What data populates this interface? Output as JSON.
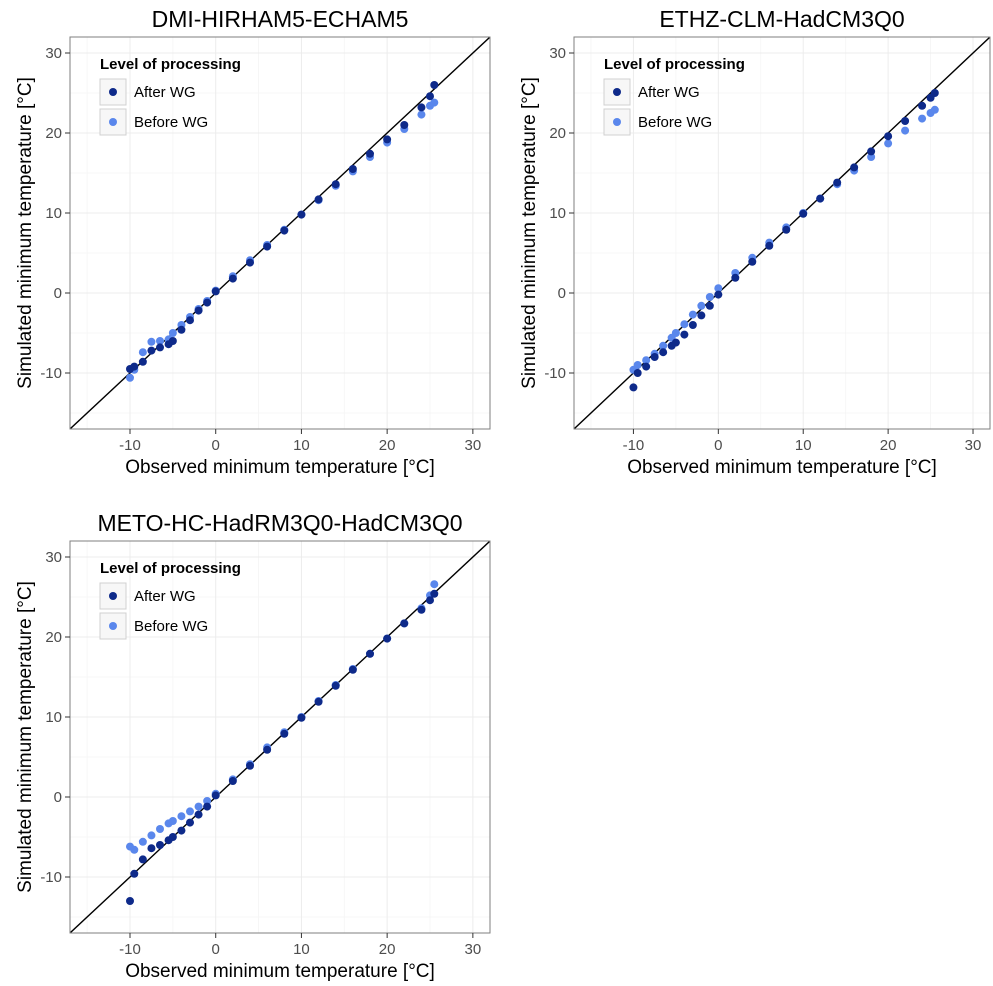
{
  "colors": {
    "after": "#0e2a8a",
    "before": "#5a87ec",
    "reference_line": "#000000",
    "grid": "#ececec",
    "frame": "#7f7f7f"
  },
  "chart_data": [
    {
      "type": "scatter",
      "title": "DMI-HIRHAM5-ECHAM5",
      "xlabel": "Observed minimum temperature [°C]",
      "ylabel": "Simulated minimum temperature [°C]",
      "xlim": [
        -17,
        32
      ],
      "ylim": [
        -17,
        32
      ],
      "xticks": [
        -10,
        0,
        10,
        20,
        30
      ],
      "yticks": [
        -10,
        0,
        10,
        20,
        30
      ],
      "grid": true,
      "reference_line": "y = x",
      "legend": {
        "title": "Level of processing",
        "position": "top-left"
      },
      "series": [
        {
          "name": "After WG",
          "color": "#0e2a8a",
          "x": [
            -10,
            -9.5,
            -8.5,
            -7.5,
            -6.5,
            -5.5,
            -5,
            -4,
            -3,
            -2,
            -1,
            0,
            2,
            4,
            6,
            8,
            10,
            12,
            14,
            16,
            18,
            20,
            22,
            24,
            25,
            25.5
          ],
          "y": [
            -9.5,
            -9.2,
            -8.6,
            -7.2,
            -6.8,
            -6.4,
            -6,
            -4.6,
            -3.4,
            -2.2,
            -1.2,
            0.2,
            1.8,
            3.8,
            5.8,
            7.8,
            9.8,
            11.7,
            13.6,
            15.5,
            17.4,
            19.2,
            21,
            23.2,
            24.6,
            26
          ]
        },
        {
          "name": "Before WG",
          "color": "#5a87ec",
          "x": [
            -10,
            -9.5,
            -8.5,
            -7.5,
            -6.5,
            -5.5,
            -5,
            -4,
            -3,
            -2,
            -1,
            0,
            2,
            4,
            6,
            8,
            10,
            12,
            14,
            16,
            18,
            20,
            22,
            24,
            25,
            25.5
          ],
          "y": [
            -10.6,
            -9.6,
            -7.4,
            -6.1,
            -6,
            -5.8,
            -5,
            -4,
            -3,
            -2,
            -1,
            0.3,
            2.1,
            4.1,
            6,
            7.9,
            9.8,
            11.6,
            13.4,
            15.2,
            17,
            18.8,
            20.5,
            22.3,
            23.4,
            23.8
          ]
        }
      ]
    },
    {
      "type": "scatter",
      "title": "ETHZ-CLM-HadCM3Q0",
      "xlabel": "Observed minimum temperature [°C]",
      "ylabel": "Simulated minimum temperature [°C]",
      "xlim": [
        -17,
        32
      ],
      "ylim": [
        -17,
        32
      ],
      "xticks": [
        -10,
        0,
        10,
        20,
        30
      ],
      "yticks": [
        -10,
        0,
        10,
        20,
        30
      ],
      "grid": true,
      "reference_line": "y = x",
      "legend": {
        "title": "Level of processing",
        "position": "top-left"
      },
      "series": [
        {
          "name": "After WG",
          "color": "#0e2a8a",
          "x": [
            -10,
            -9.5,
            -8.5,
            -7.5,
            -6.5,
            -5.5,
            -5,
            -4,
            -3,
            -2,
            -1,
            0,
            2,
            4,
            6,
            8,
            10,
            12,
            14,
            16,
            18,
            20,
            22,
            24,
            25,
            25.5
          ],
          "y": [
            -11.8,
            -10,
            -9.2,
            -8,
            -7.4,
            -6.6,
            -6.2,
            -5.2,
            -4,
            -2.8,
            -1.6,
            -0.2,
            1.9,
            3.9,
            5.9,
            7.9,
            9.9,
            11.8,
            13.8,
            15.7,
            17.7,
            19.6,
            21.5,
            23.4,
            24.4,
            25
          ]
        },
        {
          "name": "Before WG",
          "color": "#5a87ec",
          "x": [
            -10,
            -9.5,
            -8.5,
            -7.5,
            -6.5,
            -5.5,
            -5,
            -4,
            -3,
            -2,
            -1,
            0,
            2,
            4,
            6,
            8,
            10,
            12,
            14,
            16,
            18,
            20,
            22,
            24,
            25,
            25.5
          ],
          "y": [
            -9.6,
            -9,
            -8.4,
            -7.6,
            -6.6,
            -5.6,
            -5,
            -3.9,
            -2.7,
            -1.6,
            -0.5,
            0.6,
            2.5,
            4.4,
            6.3,
            8.2,
            10,
            11.8,
            13.6,
            15.3,
            17,
            18.7,
            20.3,
            21.8,
            22.5,
            22.9
          ]
        }
      ]
    },
    {
      "type": "scatter",
      "title": "METO-HC-HadRM3Q0-HadCM3Q0",
      "xlabel": "Observed minimum temperature [°C]",
      "ylabel": "Simulated minimum temperature [°C]",
      "xlim": [
        -17,
        32
      ],
      "ylim": [
        -17,
        32
      ],
      "xticks": [
        -10,
        0,
        10,
        20,
        30
      ],
      "yticks": [
        -10,
        0,
        10,
        20,
        30
      ],
      "grid": true,
      "reference_line": "y = x",
      "legend": {
        "title": "Level of processing",
        "position": "top-left"
      },
      "series": [
        {
          "name": "After WG",
          "color": "#0e2a8a",
          "x": [
            -10,
            -9.5,
            -8.5,
            -7.5,
            -6.5,
            -5.5,
            -5,
            -4,
            -3,
            -2,
            -1,
            0,
            2,
            4,
            6,
            8,
            10,
            12,
            14,
            16,
            18,
            20,
            22,
            24,
            25,
            25.5
          ],
          "y": [
            -13,
            -9.6,
            -7.8,
            -6.4,
            -6,
            -5.4,
            -5,
            -4.2,
            -3.2,
            -2.2,
            -1.2,
            0.2,
            2,
            3.9,
            5.9,
            7.9,
            9.9,
            11.9,
            13.9,
            15.9,
            17.9,
            19.8,
            21.7,
            23.4,
            24.6,
            25.4
          ]
        },
        {
          "name": "Before WG",
          "color": "#5a87ec",
          "x": [
            -10,
            -9.5,
            -8.5,
            -7.5,
            -6.5,
            -5.5,
            -5,
            -4,
            -3,
            -2,
            -1,
            0,
            2,
            4,
            6,
            8,
            10,
            12,
            14,
            16,
            18,
            20,
            22,
            24,
            25,
            25.5
          ],
          "y": [
            -6.2,
            -6.6,
            -5.6,
            -4.8,
            -4,
            -3.3,
            -3,
            -2.4,
            -1.8,
            -1.2,
            -0.5,
            0.4,
            2.2,
            4.1,
            6.2,
            8.1,
            10,
            12,
            14,
            16,
            17.9,
            19.8,
            21.7,
            23.6,
            25.2,
            26.6
          ]
        }
      ]
    }
  ]
}
